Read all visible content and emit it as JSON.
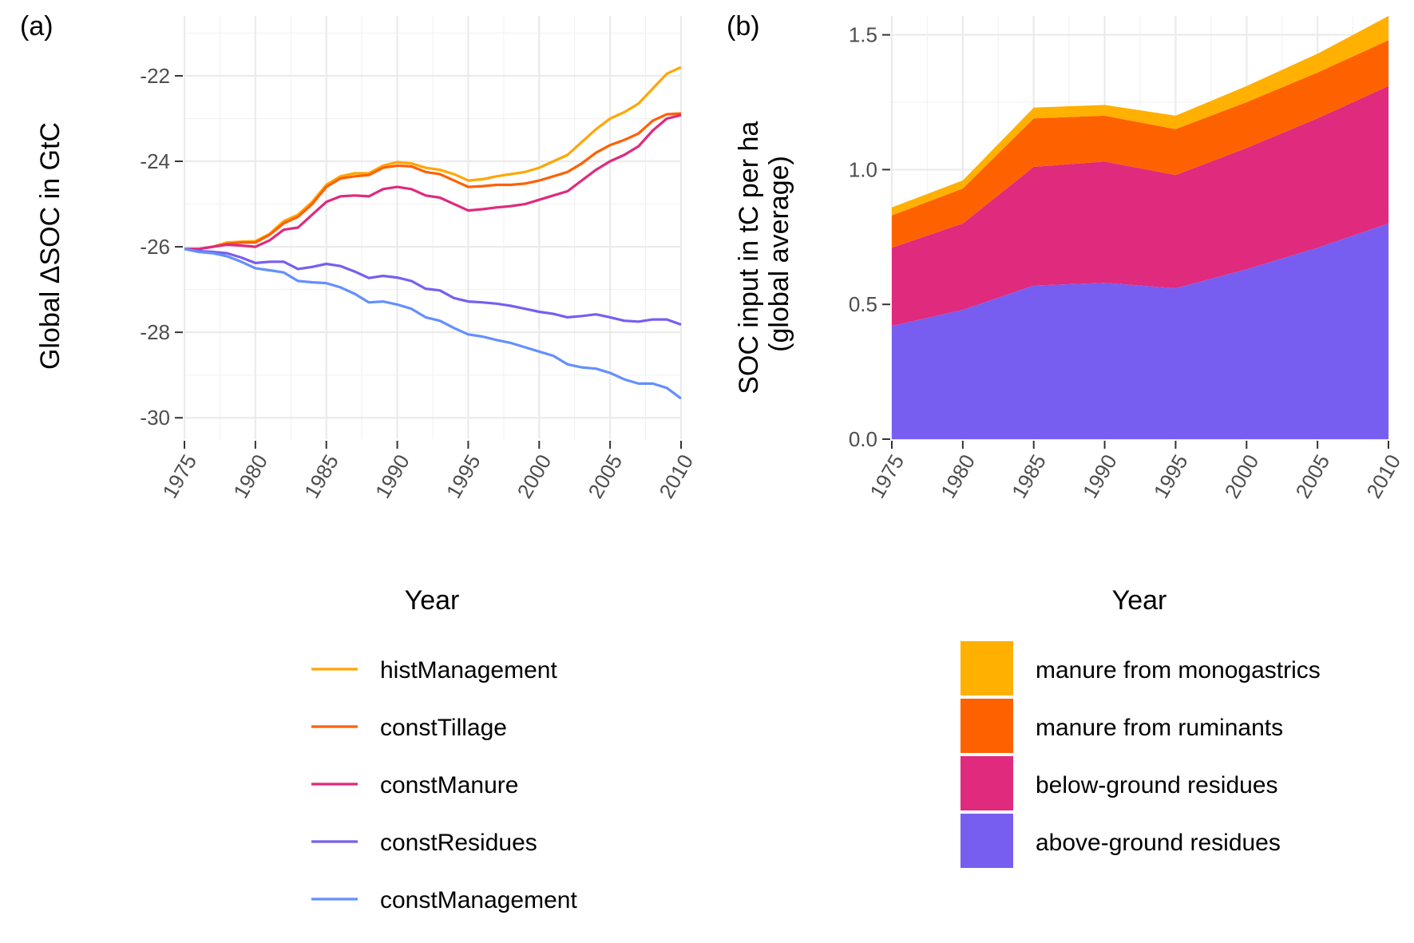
{
  "chart_data": [
    {
      "panel": "(a)",
      "type": "line",
      "xlabel": "Year",
      "ylabel": "Global ΔSOC in GtC",
      "xlim": [
        1975,
        2010
      ],
      "ylim": [
        -30.5,
        -20.6
      ],
      "xticks": [
        "1975",
        "1980",
        "1985",
        "1990",
        "1995",
        "2000",
        "2005",
        "2010"
      ],
      "yticks": [
        "-22",
        "-24",
        "-26",
        "-28",
        "-30"
      ],
      "legend_position": "bottom",
      "x": [
        1975,
        1976,
        1977,
        1978,
        1979,
        1980,
        1981,
        1982,
        1983,
        1984,
        1985,
        1986,
        1987,
        1988,
        1989,
        1990,
        1991,
        1992,
        1993,
        1994,
        1995,
        1996,
        1997,
        1998,
        1999,
        2000,
        2001,
        2002,
        2003,
        2004,
        2005,
        2006,
        2007,
        2008,
        2009,
        2010
      ],
      "series": [
        {
          "name": "histManagement",
          "color": "#FFA600",
          "values": [
            -26.05,
            -26.05,
            -26.0,
            -25.9,
            -25.88,
            -25.87,
            -25.7,
            -25.4,
            -25.25,
            -24.95,
            -24.55,
            -24.35,
            -24.28,
            -24.28,
            -24.1,
            -24.02,
            -24.05,
            -24.15,
            -24.2,
            -24.3,
            -24.45,
            -24.42,
            -24.35,
            -24.3,
            -24.25,
            -24.15,
            -24.0,
            -23.85,
            -23.55,
            -23.25,
            -23.0,
            -22.85,
            -22.65,
            -22.3,
            -21.95,
            -21.8
          ]
        },
        {
          "name": "constTillage",
          "color": "#FF6000",
          "values": [
            -26.05,
            -26.05,
            -26.0,
            -25.93,
            -25.9,
            -25.9,
            -25.72,
            -25.45,
            -25.3,
            -25.0,
            -24.6,
            -24.4,
            -24.35,
            -24.32,
            -24.15,
            -24.1,
            -24.12,
            -24.25,
            -24.3,
            -24.45,
            -24.6,
            -24.58,
            -24.55,
            -24.55,
            -24.52,
            -24.45,
            -24.35,
            -24.25,
            -24.05,
            -23.8,
            -23.62,
            -23.5,
            -23.35,
            -23.05,
            -22.9,
            -22.88
          ]
        },
        {
          "name": "constManure",
          "color": "#DF2A7E",
          "values": [
            -26.05,
            -26.05,
            -26.0,
            -25.95,
            -25.97,
            -26.0,
            -25.85,
            -25.6,
            -25.55,
            -25.25,
            -24.95,
            -24.82,
            -24.8,
            -24.82,
            -24.65,
            -24.6,
            -24.65,
            -24.8,
            -24.85,
            -25.0,
            -25.15,
            -25.12,
            -25.08,
            -25.05,
            -25.0,
            -24.9,
            -24.8,
            -24.7,
            -24.45,
            -24.2,
            -24.0,
            -23.85,
            -23.65,
            -23.28,
            -23.0,
            -22.92
          ]
        },
        {
          "name": "constResidues",
          "color": "#785EF0",
          "values": [
            -26.05,
            -26.1,
            -26.12,
            -26.15,
            -26.25,
            -26.38,
            -26.35,
            -26.35,
            -26.52,
            -26.47,
            -26.4,
            -26.45,
            -26.58,
            -26.73,
            -26.68,
            -26.72,
            -26.8,
            -26.98,
            -27.02,
            -27.2,
            -27.28,
            -27.3,
            -27.33,
            -27.38,
            -27.45,
            -27.52,
            -27.57,
            -27.65,
            -27.62,
            -27.58,
            -27.65,
            -27.73,
            -27.75,
            -27.7,
            -27.7,
            -27.82
          ]
        },
        {
          "name": "constManagement",
          "color": "#648FFF",
          "values": [
            -26.05,
            -26.12,
            -26.15,
            -26.22,
            -26.35,
            -26.5,
            -26.55,
            -26.6,
            -26.8,
            -26.83,
            -26.85,
            -26.95,
            -27.1,
            -27.3,
            -27.28,
            -27.35,
            -27.45,
            -27.65,
            -27.73,
            -27.9,
            -28.05,
            -28.1,
            -28.18,
            -28.25,
            -28.35,
            -28.45,
            -28.55,
            -28.75,
            -28.82,
            -28.85,
            -28.95,
            -29.1,
            -29.2,
            -29.2,
            -29.3,
            -29.55
          ]
        }
      ]
    },
    {
      "panel": "(b)",
      "type": "area",
      "stacked": true,
      "xlabel": "Year",
      "ylabel": "SOC input in tC per ha\n(global average)",
      "xlim": [
        1975,
        2010
      ],
      "ylim": [
        0,
        1.57
      ],
      "xticks": [
        "1975",
        "1980",
        "1985",
        "1990",
        "1995",
        "2000",
        "2005",
        "2010"
      ],
      "yticks": [
        "0.0",
        "0.5",
        "1.0",
        "1.5"
      ],
      "legend_position": "bottom-right",
      "x": [
        1975,
        1980,
        1985,
        1990,
        1995,
        2000,
        2005,
        2010
      ],
      "series": [
        {
          "name": "above-ground residues",
          "color": "#785EF0",
          "values": [
            0.42,
            0.48,
            0.57,
            0.58,
            0.56,
            0.63,
            0.71,
            0.8
          ]
        },
        {
          "name": "below-ground residues",
          "color": "#DF2A7E",
          "values": [
            0.29,
            0.32,
            0.44,
            0.45,
            0.42,
            0.45,
            0.48,
            0.51
          ]
        },
        {
          "name": "manure from ruminants",
          "color": "#FE6100",
          "values": [
            0.12,
            0.13,
            0.18,
            0.17,
            0.17,
            0.17,
            0.17,
            0.17
          ]
        },
        {
          "name": "manure from monogastrics",
          "color": "#FFB000",
          "values": [
            0.03,
            0.03,
            0.04,
            0.04,
            0.05,
            0.06,
            0.07,
            0.09
          ]
        }
      ]
    }
  ]
}
